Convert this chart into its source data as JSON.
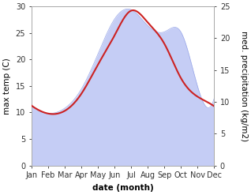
{
  "months": [
    "Jan",
    "Feb",
    "Mar",
    "Apr",
    "May",
    "Jun",
    "Jul",
    "Aug",
    "Sep",
    "Oct",
    "Nov",
    "Dec"
  ],
  "temp_C": [
    11.3,
    9.8,
    10.3,
    13.5,
    19.0,
    24.5,
    29.2,
    27.0,
    23.0,
    16.5,
    13.0,
    11.2
  ],
  "precip_mm": [
    9.5,
    8.2,
    9.0,
    12.0,
    17.5,
    23.0,
    24.5,
    22.0,
    21.0,
    21.0,
    12.5,
    10.5
  ],
  "temp_color": "#cc2222",
  "precip_fill_color": "#c5cdf5",
  "precip_line_color": "#9aa8e8",
  "ylim_left": [
    0,
    30
  ],
  "ylim_right": [
    0,
    25
  ],
  "xlabel": "date (month)",
  "ylabel_left": "max temp (C)",
  "ylabel_right": "med. precipitation (kg/m2)",
  "label_fontsize": 7.5,
  "tick_fontsize": 7,
  "background_color": "#ffffff"
}
